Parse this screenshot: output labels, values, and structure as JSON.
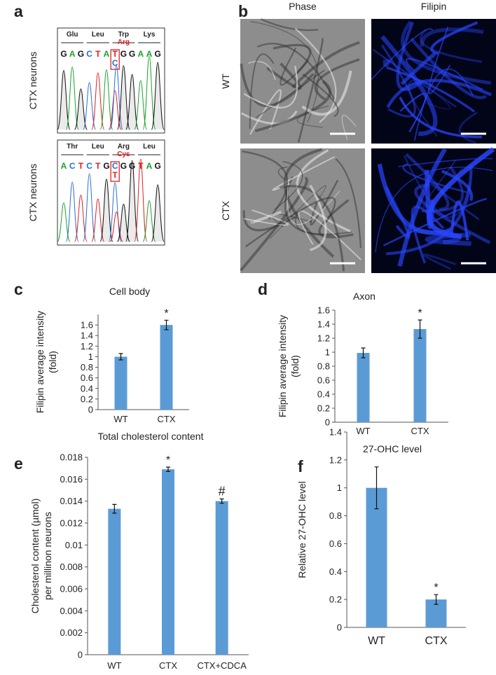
{
  "panel_labels": [
    "a",
    "b",
    "c",
    "d",
    "e",
    "f"
  ],
  "panel_a": {
    "traces": [
      {
        "label": "CTX neurons",
        "codons": [
          "Glu",
          "Leu",
          "Trp",
          "Lys"
        ],
        "mutant_codon": "Arg",
        "sequence": [
          "G",
          "A",
          "G",
          "C",
          "T",
          "A",
          [
            "T",
            "C"
          ],
          "G",
          "G",
          "A",
          "A",
          "G"
        ]
      },
      {
        "label": "CTX neurons",
        "codons": [
          "Thr",
          "Leu",
          "Arg",
          "Leu"
        ],
        "mutant_codon": "Cys",
        "sequence": [
          "A",
          "C",
          "T",
          "C",
          "T",
          "G",
          [
            "C",
            "T"
          ],
          "G",
          "G",
          "T",
          "A",
          "G"
        ]
      }
    ]
  },
  "panel_b": {
    "columns": [
      "Phase",
      "Filipin"
    ],
    "rows": [
      "WT",
      "CTX"
    ]
  },
  "chart_data": [
    {
      "type": "bar",
      "title": "Cell body",
      "ylabel": [
        "Filipin average intensity",
        "(fold)"
      ],
      "categories": [
        "WT",
        "CTX"
      ],
      "values": [
        1.0,
        1.6
      ],
      "errors": [
        0.06,
        0.09
      ],
      "color": "#5b9bd5",
      "ylim": [
        0,
        1.8
      ],
      "yticks": [
        0,
        0.2,
        0.4,
        0.6,
        0.8,
        1,
        1.2,
        1.4,
        1.6
      ],
      "grid": false,
      "annotations": [
        {
          "text": "*",
          "category": "CTX"
        }
      ]
    },
    {
      "type": "bar",
      "title": "Axon",
      "ylabel": [
        "Filipin average intensity",
        "(fold)"
      ],
      "categories": [
        "WT",
        "CTX"
      ],
      "values": [
        0.99,
        1.33
      ],
      "errors": [
        0.07,
        0.13
      ],
      "color": "#5b9bd5",
      "ylim": [
        0,
        1.6
      ],
      "yticks": [
        0,
        0.2,
        0.4,
        0.6,
        0.8,
        1,
        1.2,
        1.4,
        1.6
      ],
      "grid": false,
      "annotations": [
        {
          "text": "*",
          "category": "CTX"
        }
      ]
    },
    {
      "type": "bar",
      "title": "Total cholesterol content",
      "ylabel": [
        "Cholesterol content (µmol)",
        "per millinon neurons"
      ],
      "categories": [
        "WT",
        "CTX",
        "CTX+CDCA"
      ],
      "values": [
        0.0133,
        0.0169,
        0.014
      ],
      "errors": [
        0.0004,
        0.0002,
        0.0002
      ],
      "color": "#5b9bd5",
      "ylim": [
        0,
        0.018
      ],
      "yticks": [
        0,
        0.002,
        0.004,
        0.006,
        0.008,
        0.01,
        0.012,
        0.014,
        0.016,
        0.018
      ],
      "grid": false,
      "annotations": [
        {
          "text": "*",
          "category": "CTX"
        },
        {
          "text": "#",
          "category": "CTX+CDCA"
        }
      ]
    },
    {
      "type": "bar",
      "title": "27-OHC level",
      "ylabel": [
        "Relative 27-OHC level"
      ],
      "categories": [
        "WT",
        "CTX"
      ],
      "values": [
        1.0,
        0.2
      ],
      "errors": [
        0.15,
        0.035
      ],
      "color": "#5b9bd5",
      "ylim": [
        0,
        1.4
      ],
      "yticks": [
        0,
        0.2,
        0.4,
        0.6,
        0.8,
        1,
        1.2,
        1.4
      ],
      "grid": false,
      "annotations": [
        {
          "text": "*",
          "category": "CTX"
        }
      ]
    }
  ]
}
